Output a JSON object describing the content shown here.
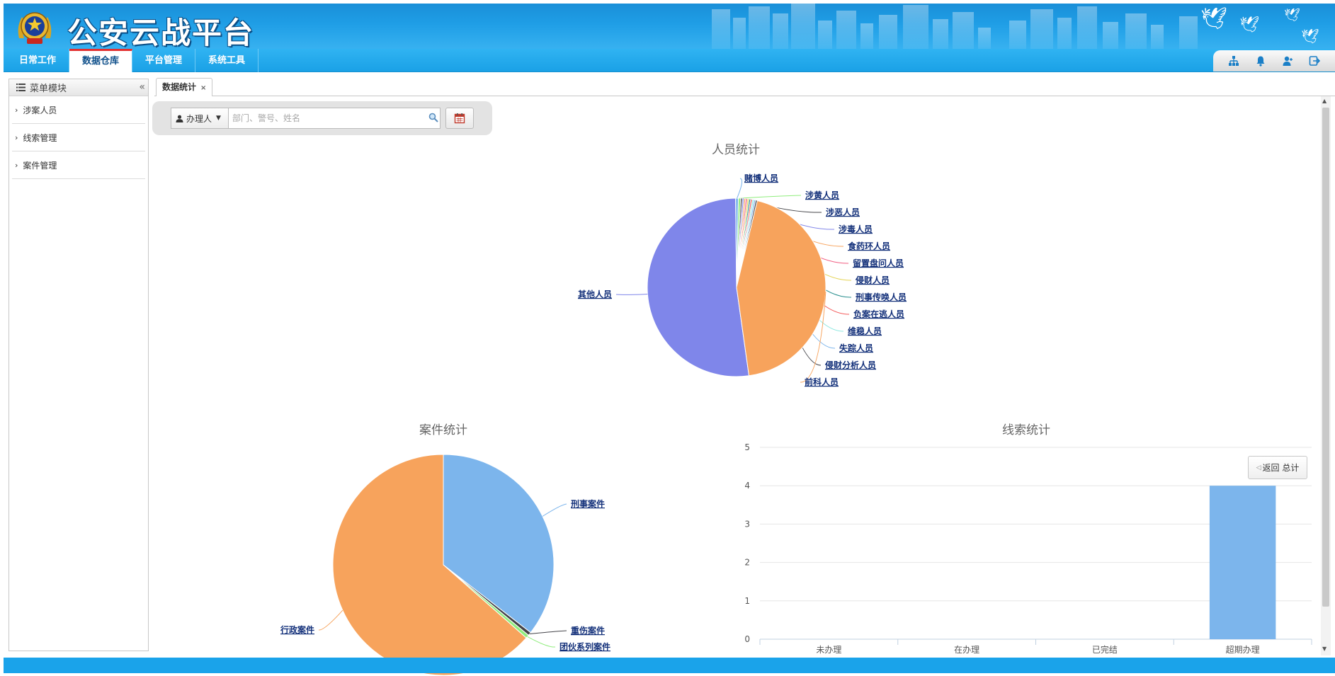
{
  "header": {
    "title": "公安云战平台",
    "emblem_icon": "police-emblem-icon",
    "colors": {
      "primary": "#1a9fe6",
      "accent_tab": "#e23131",
      "link": "#13307a"
    }
  },
  "nav": {
    "tabs": [
      {
        "label": "日常工作"
      },
      {
        "label": "数据仓库"
      },
      {
        "label": "平台管理"
      },
      {
        "label": "系统工具"
      }
    ],
    "active_tab": "数据仓库",
    "icons": [
      "org-chart-icon",
      "bell-icon",
      "user-icon",
      "logout-icon"
    ]
  },
  "sidebar": {
    "title": "菜单模块",
    "items": [
      {
        "label": "涉案人员"
      },
      {
        "label": "线索管理"
      },
      {
        "label": "案件管理"
      }
    ]
  },
  "content": {
    "tab_label": "数据统计",
    "tab_close": "×"
  },
  "filter": {
    "select_value": "办理人",
    "search_placeholder": "部门、警号、姓名"
  },
  "charts": {
    "return_label": "返回 总计"
  },
  "chart_data": [
    {
      "type": "pie",
      "title": "人员统计",
      "labels": [
        "其他人员",
        "赌博人员",
        "涉黄人员",
        "涉恶人员",
        "涉毒人员",
        "食药环人员",
        "留置盘问人员",
        "侵财人员",
        "刑事传唤人员",
        "负案在逃人员",
        "维稳人员",
        "失踪人员",
        "侵财分析人员",
        "前科人员"
      ],
      "values": [
        52,
        0.5,
        0.4,
        0.3,
        0.3,
        0.3,
        0.3,
        0.3,
        0.3,
        0.3,
        0.3,
        0.3,
        0.3,
        44
      ],
      "colors": [
        "#7f86ea",
        "#7cb5ec",
        "#90ed7d",
        "#434348",
        "#8085e9",
        "#f7a35c",
        "#f15c80",
        "#e4d354",
        "#2b908f",
        "#f45b5b",
        "#91e8e1",
        "#7cb5ec",
        "#434348",
        "#f7a35c"
      ]
    },
    {
      "type": "pie",
      "title": "案件统计",
      "labels": [
        "刑事案件",
        "重伤案件",
        "团伙系列案件",
        "行政案件"
      ],
      "values": [
        35.5,
        0.5,
        0.5,
        63.5
      ],
      "colors": [
        "#7cb5ec",
        "#434348",
        "#90ed7d",
        "#f7a35c"
      ]
    },
    {
      "type": "bar",
      "title": "线索统计",
      "categories": [
        "未办理",
        "在办理",
        "已完结",
        "超期办理"
      ],
      "values": [
        0,
        0,
        0,
        4
      ],
      "ylim": [
        0,
        5
      ],
      "yticks": [
        0,
        1,
        2,
        3,
        4,
        5
      ],
      "grid": true,
      "color": "#7cb5ec"
    }
  ]
}
